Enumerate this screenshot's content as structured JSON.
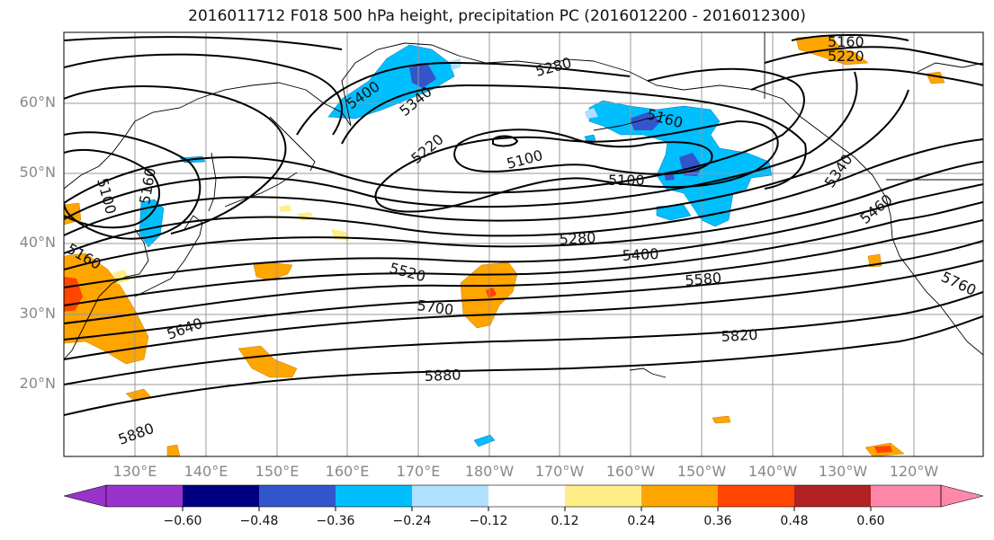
{
  "title": "2016011712 F018 500 hPa height, precipitation PC (2016012200 - 2016012300)",
  "lat_labels": [
    "60°N",
    "50°N",
    "40°N",
    "30°N",
    "20°N"
  ],
  "lon_labels": [
    "130°E",
    "140°E",
    "150°E",
    "160°E",
    "170°E",
    "180°W",
    "170°W",
    "160°W",
    "150°W",
    "140°W",
    "130°W",
    "120°W"
  ],
  "contour_labels": [
    "5160",
    "5220",
    "5280",
    "5400",
    "5340",
    "5220",
    "5100",
    "5160",
    "5100",
    "5340",
    "5460",
    "5280",
    "5400",
    "5520",
    "5580",
    "5760",
    "5700",
    "5640",
    "5820",
    "5880",
    "5880",
    "5100",
    "5160",
    "5160"
  ],
  "colorbar": {
    "ticks": [
      "−0.60",
      "−0.48",
      "−0.36",
      "−0.24",
      "−0.12",
      "0.12",
      "0.24",
      "0.36",
      "0.48",
      "0.60"
    ],
    "colors": [
      "#9933cc",
      "#000080",
      "#3355cc",
      "#00bfff",
      "#b0e0ff",
      "#ffffff",
      "#ffee88",
      "#ffa500",
      "#ff4500",
      "#b22222",
      "#ff88aa"
    ]
  }
}
